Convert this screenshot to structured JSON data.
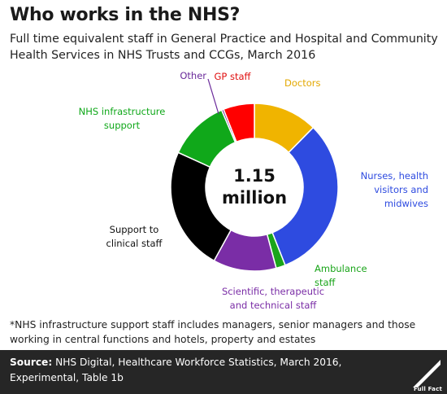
{
  "header": {
    "title": "Who works in the NHS?",
    "subtitle": "Full time equivalent staff in General Practice and Hospital and Community Health Services in NHS Trusts and CCGs, March 2016"
  },
  "chart_data": {
    "type": "pie",
    "donut": true,
    "center_label_line1": "1.15",
    "center_label_line2": "million",
    "slices": [
      {
        "key": "doctors",
        "label_lines": [
          "Doctors"
        ],
        "value": 12.4,
        "color": "#f0b400",
        "label_color": "#e3a800"
      },
      {
        "key": "nurses",
        "label_lines": [
          "Nurses, health",
          "visitors and",
          "midwives"
        ],
        "value": 31.6,
        "color": "#2e4be0",
        "label_color": "#2e4be0"
      },
      {
        "key": "ambulance",
        "label_lines": [
          "Ambulance",
          "staff"
        ],
        "value": 1.8,
        "color": "#1aa51a",
        "label_color": "#1aa51a"
      },
      {
        "key": "scientific",
        "label_lines": [
          "Scientific, therapeutic",
          "and technical staff"
        ],
        "value": 12.2,
        "color": "#7a2da6",
        "label_color": "#7a2da6"
      },
      {
        "key": "support_clinical",
        "label_lines": [
          "Support to",
          "clinical staff"
        ],
        "value": 23.8,
        "color": "#000000",
        "label_color": "#111111"
      },
      {
        "key": "infrastructure",
        "label_lines": [
          "NHS infrastructure",
          "support"
        ],
        "value": 11.8,
        "color": "#10a81a",
        "label_color": "#10a81a"
      },
      {
        "key": "other",
        "label_lines": [
          "Other"
        ],
        "value": 0.4,
        "color": "#6a2a9a",
        "label_color": "#6a2a9a"
      },
      {
        "key": "gp",
        "label_lines": [
          "GP staff"
        ],
        "value": 6.0,
        "color": "#ff0000",
        "label_color": "#e01010"
      }
    ]
  },
  "footnote": "*NHS infrastructure support staff includes managers, senior managers and those working in central functions and hotels, property and estates",
  "source": {
    "label": "Source:",
    "text": " NHS Digital, Healthcare Workforce Statistics, March 2016, Experimental, Table 1b"
  },
  "logo": {
    "text": "Full Fact",
    "icon": "full-fact-logo-icon"
  }
}
